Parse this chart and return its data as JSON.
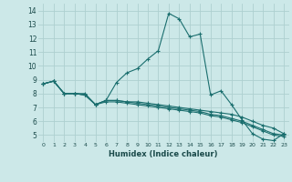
{
  "title": "",
  "xlabel": "Humidex (Indice chaleur)",
  "xlim": [
    -0.5,
    23.5
  ],
  "ylim": [
    4.5,
    14.5
  ],
  "xticks": [
    0,
    1,
    2,
    3,
    4,
    5,
    6,
    7,
    8,
    9,
    10,
    11,
    12,
    13,
    14,
    15,
    16,
    17,
    18,
    19,
    20,
    21,
    22,
    23
  ],
  "yticks": [
    5,
    6,
    7,
    8,
    9,
    10,
    11,
    12,
    13,
    14
  ],
  "background_color": "#cce8e8",
  "grid_color": "#aed0d0",
  "line_color": "#1a6e6e",
  "lines": [
    [
      8.7,
      8.9,
      8.0,
      8.0,
      8.0,
      7.2,
      7.5,
      8.8,
      9.5,
      9.8,
      10.5,
      11.1,
      13.8,
      13.4,
      12.1,
      12.3,
      7.9,
      8.2,
      7.2,
      6.1,
      5.1,
      4.7,
      4.6,
      5.1
    ],
    [
      8.7,
      8.9,
      8.0,
      8.0,
      7.9,
      7.2,
      7.5,
      7.5,
      7.4,
      7.4,
      7.3,
      7.2,
      7.1,
      7.0,
      6.9,
      6.8,
      6.7,
      6.6,
      6.5,
      6.3,
      6.0,
      5.7,
      5.5,
      5.1
    ],
    [
      8.7,
      8.9,
      8.0,
      8.0,
      7.9,
      7.2,
      7.5,
      7.5,
      7.4,
      7.3,
      7.2,
      7.1,
      7.0,
      6.9,
      6.8,
      6.7,
      6.5,
      6.4,
      6.2,
      6.0,
      5.7,
      5.4,
      5.1,
      5.0
    ],
    [
      8.7,
      8.9,
      8.0,
      8.0,
      7.9,
      7.2,
      7.4,
      7.4,
      7.3,
      7.2,
      7.1,
      7.0,
      6.9,
      6.8,
      6.7,
      6.6,
      6.4,
      6.3,
      6.1,
      5.9,
      5.6,
      5.3,
      5.0,
      4.9
    ]
  ]
}
